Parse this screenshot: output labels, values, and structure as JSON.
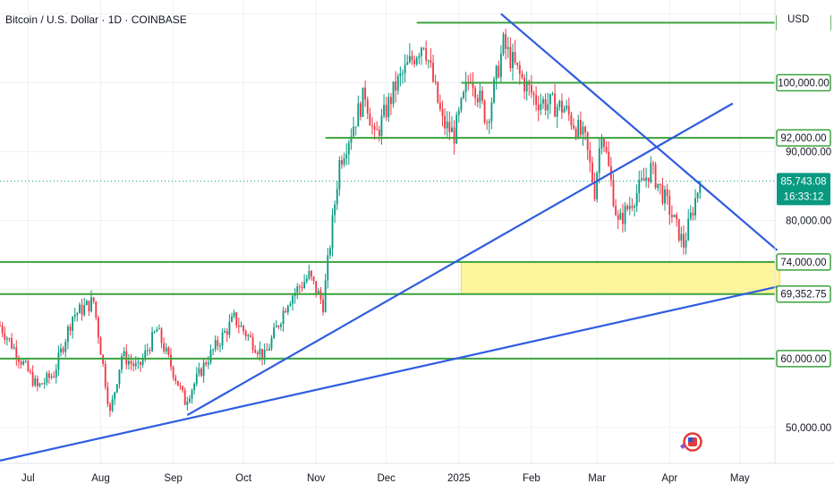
{
  "header": {
    "title": "Bitcoin / U.S. Dollar · 1D · COINBASE",
    "currency": "USD"
  },
  "colors": {
    "up": "#089981",
    "down": "#f23645",
    "level_line": "#3aa33d",
    "trend_line": "#2f5ce0",
    "zone_fill": "#fff59d",
    "zone_border": "#f2d54a",
    "current_badge": "#089981",
    "grid": "#eef0f3"
  },
  "chart_data": {
    "type": "candlestick",
    "title": "Bitcoin / U.S. Dollar · 1D · COINBASE",
    "ylim": [
      44800,
      112000
    ],
    "xlim": [
      "2024-06-19",
      "2025-05-16"
    ],
    "x_ticks": [
      {
        "date": "2024-07-01",
        "label": "Jul"
      },
      {
        "date": "2024-08-01",
        "label": "Aug"
      },
      {
        "date": "2024-09-01",
        "label": "Sep"
      },
      {
        "date": "2024-10-01",
        "label": "Oct"
      },
      {
        "date": "2024-11-01",
        "label": "Nov"
      },
      {
        "date": "2024-12-01",
        "label": "Dec"
      },
      {
        "date": "2025-01-01",
        "label": "2025"
      },
      {
        "date": "2025-02-01",
        "label": "Feb"
      },
      {
        "date": "2025-03-01",
        "label": "Mar"
      },
      {
        "date": "2025-04-01",
        "label": "Apr"
      },
      {
        "date": "2025-05-01",
        "label": "May"
      }
    ],
    "y_ticks": [
      {
        "value": 50000,
        "label": "50,000.00"
      },
      {
        "value": 80000,
        "label": "80,000.00"
      },
      {
        "value": 90000,
        "label": "90,000.00"
      }
    ],
    "price_path": [
      [
        "2024-06-19",
        64800
      ],
      [
        "2024-06-25",
        61500
      ],
      [
        "2024-07-05",
        55800
      ],
      [
        "2024-07-12",
        57800
      ],
      [
        "2024-07-20",
        66200
      ],
      [
        "2024-07-29",
        68300
      ],
      [
        "2024-08-05",
        52000
      ],
      [
        "2024-08-10",
        60500
      ],
      [
        "2024-08-17",
        58500
      ],
      [
        "2024-08-25",
        64200
      ],
      [
        "2024-09-06",
        53800
      ],
      [
        "2024-09-15",
        59600
      ],
      [
        "2024-09-27",
        65800
      ],
      [
        "2024-10-10",
        60200
      ],
      [
        "2024-10-20",
        68500
      ],
      [
        "2024-10-29",
        72000
      ],
      [
        "2024-11-04",
        67900
      ],
      [
        "2024-11-11",
        88500
      ],
      [
        "2024-11-22",
        98500
      ],
      [
        "2024-11-26",
        91800
      ],
      [
        "2024-12-05",
        99500
      ],
      [
        "2024-12-17",
        106200
      ],
      [
        "2024-12-25",
        94200
      ],
      [
        "2024-12-30",
        92500
      ],
      [
        "2025-01-06",
        101500
      ],
      [
        "2025-01-13",
        94500
      ],
      [
        "2025-01-20",
        105500
      ],
      [
        "2025-01-27",
        101000
      ],
      [
        "2025-02-03",
        97500
      ],
      [
        "2025-02-15",
        96300
      ],
      [
        "2025-02-24",
        91500
      ],
      [
        "2025-02-28",
        84300
      ],
      [
        "2025-03-03",
        93500
      ],
      [
        "2025-03-10",
        79500
      ],
      [
        "2025-03-24",
        87500
      ],
      [
        "2025-03-31",
        82400
      ],
      [
        "2025-04-07",
        76500
      ],
      [
        "2025-04-14",
        85743
      ]
    ],
    "horizontal_levels": [
      {
        "name": "level-108714",
        "value": 108714.26,
        "label": "108,714.26",
        "start": "2024-12-14"
      },
      {
        "name": "level-100000",
        "value": 100000,
        "label": "100,000.00",
        "start": "2025-01-02"
      },
      {
        "name": "level-92000",
        "value": 92000,
        "label": "92,000.00",
        "start": "2024-11-05"
      },
      {
        "name": "level-74000",
        "value": 74000,
        "label": "74,000.00",
        "start": "2024-06-19"
      },
      {
        "name": "level-69352",
        "value": 69352.75,
        "label": "69,352.75",
        "start": "2024-06-19"
      },
      {
        "name": "level-60000",
        "value": 60000,
        "label": "60,000.00",
        "start": "2024-06-19"
      }
    ],
    "trend_lines": [
      {
        "name": "descending-trendline",
        "from": [
          "2025-01-19",
          110000
        ],
        "to": [
          "2025-05-17",
          75700
        ]
      },
      {
        "name": "rising-trendline-upper",
        "from": [
          "2024-09-07",
          51800
        ],
        "to": [
          "2025-04-28",
          97000
        ]
      },
      {
        "name": "rising-trendline-lower",
        "from": [
          "2024-06-19",
          45200
        ],
        "to": [
          "2025-05-18",
          70500
        ]
      }
    ],
    "zones": [
      {
        "name": "demand-zone",
        "from": "2025-01-02",
        "to": "2025-05-18",
        "top": 74000,
        "bottom": 69352.75
      }
    ],
    "current_price": {
      "value": 85743.08,
      "label": "85,743.08",
      "countdown": "16:33:12"
    }
  }
}
